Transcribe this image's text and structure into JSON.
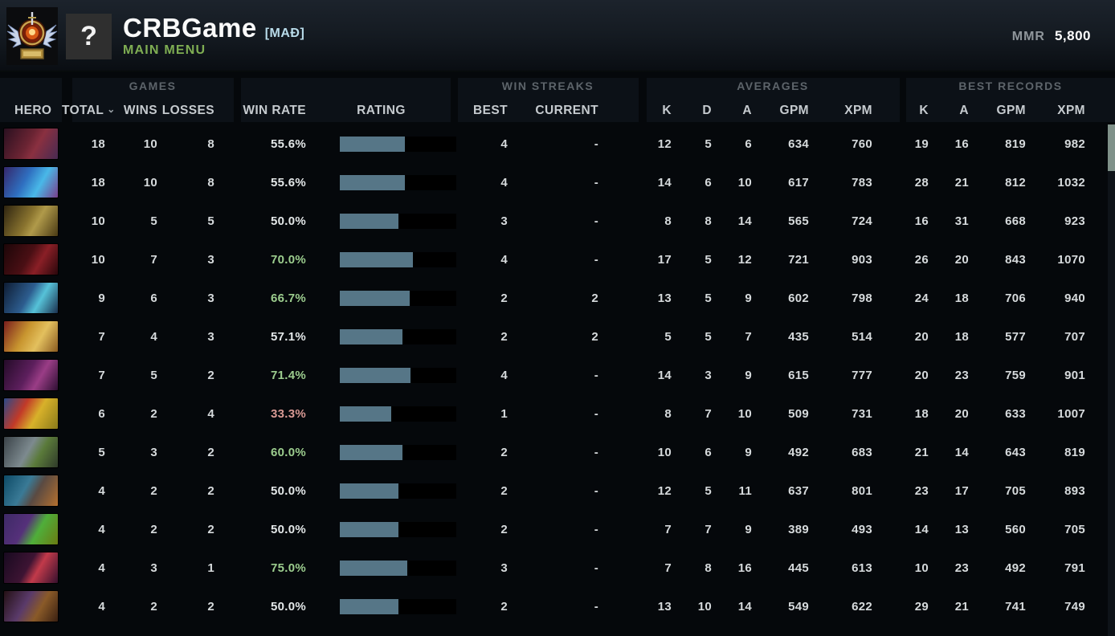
{
  "header": {
    "player_name": "CRBGame",
    "clan_tag": "[MAÐ]",
    "subtitle": "MAIN MENU",
    "avatar_glyph": "?",
    "mmr_label": "MMR",
    "mmr_value": "5,800"
  },
  "colors": {
    "accent_bar": "#567687",
    "positive": "#9ccd8e",
    "negative": "#d99a94",
    "neutral": "#e3e7e8",
    "menu_green": "#7fae53",
    "clan_blue": "#b9dcea",
    "scroll_thumb": "#7f9189"
  },
  "table": {
    "groups": {
      "games": "GAMES",
      "win_streaks": "WIN STREAKS",
      "averages": "AVERAGES",
      "best_records": "BEST RECORDS"
    },
    "columns": {
      "hero": "HERO",
      "total": "TOTAL",
      "wins": "WINS",
      "losses": "LOSSES",
      "win_rate": "WIN RATE",
      "rating": "RATING",
      "best": "BEST",
      "current": "CURRENT",
      "k": "K",
      "d": "D",
      "a": "A",
      "gpm": "GPM",
      "xpm": "XPM",
      "rec_k": "K",
      "rec_a": "A",
      "rec_gpm": "GPM",
      "rec_xpm": "XPM"
    },
    "rows": [
      {
        "hero": "broodmother",
        "total": "18",
        "wins": "10",
        "losses": "8",
        "win_rate": "55.6%",
        "win_rate_tone": "neutral",
        "rating_pct": 56,
        "best": "4",
        "current": "-",
        "k": "12",
        "d": "5",
        "a": "6",
        "gpm": "634",
        "xpm": "760",
        "rec_k": "19",
        "rec_a": "16",
        "rec_gpm": "819",
        "rec_xpm": "982"
      },
      {
        "hero": "puck",
        "total": "18",
        "wins": "10",
        "losses": "8",
        "win_rate": "55.6%",
        "win_rate_tone": "neutral",
        "rating_pct": 56,
        "best": "4",
        "current": "-",
        "k": "14",
        "d": "6",
        "a": "10",
        "gpm": "617",
        "xpm": "783",
        "rec_k": "28",
        "rec_a": "21",
        "rec_gpm": "812",
        "rec_xpm": "1032"
      },
      {
        "hero": "elder-titan",
        "total": "10",
        "wins": "5",
        "losses": "5",
        "win_rate": "50.0%",
        "win_rate_tone": "neutral",
        "rating_pct": 50,
        "best": "3",
        "current": "-",
        "k": "8",
        "d": "8",
        "a": "14",
        "gpm": "565",
        "xpm": "724",
        "rec_k": "16",
        "rec_a": "31",
        "rec_gpm": "668",
        "rec_xpm": "923"
      },
      {
        "hero": "shadow-demon",
        "total": "10",
        "wins": "7",
        "losses": "3",
        "win_rate": "70.0%",
        "win_rate_tone": "positive",
        "rating_pct": 63,
        "best": "4",
        "current": "-",
        "k": "17",
        "d": "5",
        "a": "12",
        "gpm": "721",
        "xpm": "903",
        "rec_k": "26",
        "rec_a": "20",
        "rec_gpm": "843",
        "rec_xpm": "1070"
      },
      {
        "hero": "storm-spirit",
        "total": "9",
        "wins": "6",
        "losses": "3",
        "win_rate": "66.7%",
        "win_rate_tone": "positive",
        "rating_pct": 60,
        "best": "2",
        "current": "2",
        "k": "13",
        "d": "5",
        "a": "9",
        "gpm": "602",
        "xpm": "798",
        "rec_k": "24",
        "rec_a": "18",
        "rec_gpm": "706",
        "rec_xpm": "940"
      },
      {
        "hero": "chen",
        "total": "7",
        "wins": "4",
        "losses": "3",
        "win_rate": "57.1%",
        "win_rate_tone": "neutral",
        "rating_pct": 54,
        "best": "2",
        "current": "2",
        "k": "5",
        "d": "5",
        "a": "7",
        "gpm": "435",
        "xpm": "514",
        "rec_k": "20",
        "rec_a": "18",
        "rec_gpm": "577",
        "rec_xpm": "707"
      },
      {
        "hero": "queen-of-pain",
        "total": "7",
        "wins": "5",
        "losses": "2",
        "win_rate": "71.4%",
        "win_rate_tone": "positive",
        "rating_pct": 61,
        "best": "4",
        "current": "-",
        "k": "14",
        "d": "3",
        "a": "9",
        "gpm": "615",
        "xpm": "777",
        "rec_k": "20",
        "rec_a": "23",
        "rec_gpm": "759",
        "rec_xpm": "901"
      },
      {
        "hero": "batrider",
        "total": "6",
        "wins": "2",
        "losses": "4",
        "win_rate": "33.3%",
        "win_rate_tone": "negative",
        "rating_pct": 44,
        "best": "1",
        "current": "-",
        "k": "8",
        "d": "7",
        "a": "10",
        "gpm": "509",
        "xpm": "731",
        "rec_k": "18",
        "rec_a": "20",
        "rec_gpm": "633",
        "rec_xpm": "1007"
      },
      {
        "hero": "tiny",
        "total": "5",
        "wins": "3",
        "losses": "2",
        "win_rate": "60.0%",
        "win_rate_tone": "positive",
        "rating_pct": 54,
        "best": "2",
        "current": "-",
        "k": "10",
        "d": "6",
        "a": "9",
        "gpm": "492",
        "xpm": "683",
        "rec_k": "21",
        "rec_a": "14",
        "rec_gpm": "643",
        "rec_xpm": "819"
      },
      {
        "hero": "magnus",
        "total": "4",
        "wins": "2",
        "losses": "2",
        "win_rate": "50.0%",
        "win_rate_tone": "neutral",
        "rating_pct": 50,
        "best": "2",
        "current": "-",
        "k": "12",
        "d": "5",
        "a": "11",
        "gpm": "637",
        "xpm": "801",
        "rec_k": "23",
        "rec_a": "17",
        "rec_gpm": "705",
        "rec_xpm": "893"
      },
      {
        "hero": "rubick",
        "total": "4",
        "wins": "2",
        "losses": "2",
        "win_rate": "50.0%",
        "win_rate_tone": "neutral",
        "rating_pct": 50,
        "best": "2",
        "current": "-",
        "k": "7",
        "d": "7",
        "a": "9",
        "gpm": "389",
        "xpm": "493",
        "rec_k": "14",
        "rec_a": "13",
        "rec_gpm": "560",
        "rec_xpm": "705"
      },
      {
        "hero": "terrorblade",
        "total": "4",
        "wins": "3",
        "losses": "1",
        "win_rate": "75.0%",
        "win_rate_tone": "positive",
        "rating_pct": 58,
        "best": "3",
        "current": "-",
        "k": "7",
        "d": "8",
        "a": "16",
        "gpm": "445",
        "xpm": "613",
        "rec_k": "10",
        "rec_a": "23",
        "rec_gpm": "492",
        "rec_xpm": "791"
      },
      {
        "hero": "sand-king",
        "total": "4",
        "wins": "2",
        "losses": "2",
        "win_rate": "50.0%",
        "win_rate_tone": "neutral",
        "rating_pct": 50,
        "best": "2",
        "current": "-",
        "k": "13",
        "d": "10",
        "a": "14",
        "gpm": "549",
        "xpm": "622",
        "rec_k": "29",
        "rec_a": "21",
        "rec_gpm": "741",
        "rec_xpm": "749"
      }
    ]
  }
}
